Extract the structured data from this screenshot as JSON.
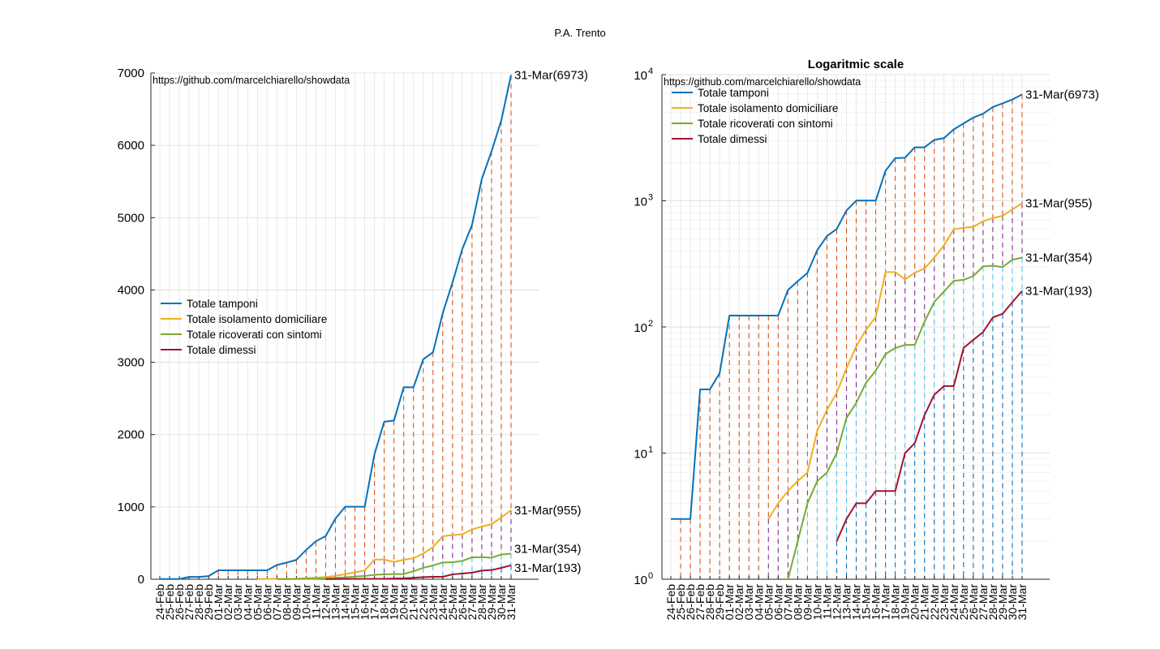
{
  "figure": {
    "title": "P.A. Trento"
  },
  "chart_data": [
    {
      "type": "line",
      "title": "",
      "watermark": "https://github.com/marcelchiarello/showdata",
      "xlabel": "",
      "ylabel": "",
      "ylim": [
        0,
        7000
      ],
      "yticks": [
        "0",
        "1000",
        "2000",
        "3000",
        "4000",
        "5000",
        "6000",
        "7000"
      ],
      "yscale": "linear",
      "grid": true,
      "legend": "left-middle",
      "end_labels": [
        "31-Mar(6973)",
        "31-Mar(955)",
        "31-Mar(354)",
        "31-Mar(193)"
      ]
    },
    {
      "type": "line",
      "title": "Logaritmic scale",
      "watermark": "https://github.com/marcelchiarello/showdata",
      "xlabel": "",
      "ylabel": "",
      "ylim": [
        1,
        10000
      ],
      "yticks": [
        "10",
        "10",
        "10",
        "10",
        "10"
      ],
      "ytick_exponents": [
        "0",
        "1",
        "2",
        "3",
        "4"
      ],
      "yscale": "log",
      "grid": true,
      "legend": "top-left",
      "end_labels": [
        "31-Mar(6973)",
        "31-Mar(955)",
        "31-Mar(354)",
        "31-Mar(193)"
      ]
    }
  ],
  "shared": {
    "categories": [
      "24-Feb",
      "25-Feb",
      "26-Feb",
      "27-Feb",
      "28-Feb",
      "29-Feb",
      "01-Mar",
      "02-Mar",
      "03-Mar",
      "04-Mar",
      "05-Mar",
      "06-Mar",
      "07-Mar",
      "08-Mar",
      "09-Mar",
      "10-Mar",
      "11-Mar",
      "12-Mar",
      "13-Mar",
      "14-Mar",
      "15-Mar",
      "16-Mar",
      "17-Mar",
      "18-Mar",
      "19-Mar",
      "20-Mar",
      "21-Mar",
      "22-Mar",
      "23-Mar",
      "24-Mar",
      "25-Mar",
      "26-Mar",
      "27-Mar",
      "28-Mar",
      "29-Mar",
      "30-Mar",
      "31-Mar"
    ],
    "series": [
      {
        "name": "Totale tamponi",
        "color": "#0072BD",
        "values": [
          3,
          3,
          3,
          32,
          32,
          43,
          123,
          123,
          123,
          123,
          123,
          123,
          196,
          230,
          268,
          405,
          526,
          597,
          838,
          1003,
          1003,
          1003,
          1728,
          2178,
          2194,
          2654,
          2654,
          3041,
          3139,
          3680,
          4103,
          4564,
          4900,
          5534,
          5916,
          6344,
          6973
        ]
      },
      {
        "name": "Totale isolamento domiciliare",
        "color": "#EDB120",
        "values": [
          null,
          null,
          null,
          null,
          null,
          null,
          null,
          null,
          null,
          null,
          3,
          4,
          5,
          6,
          7,
          15,
          22,
          30,
          47,
          70,
          95,
          120,
          272,
          272,
          238,
          269,
          290,
          355,
          444,
          594,
          611,
          621,
          688,
          729,
          760,
          854,
          955
        ]
      },
      {
        "name": "Totale ricoverati con sintomi",
        "color": "#77AC30",
        "values": [
          null,
          null,
          null,
          null,
          null,
          null,
          null,
          null,
          null,
          null,
          null,
          null,
          1,
          2,
          4,
          6,
          7,
          10,
          19,
          25,
          36,
          45,
          61,
          68,
          72,
          72,
          110,
          158,
          191,
          232,
          236,
          253,
          302,
          306,
          298,
          341,
          354
        ]
      },
      {
        "name": "Totale dimessi",
        "color": "#A2142F",
        "values": [
          null,
          null,
          null,
          null,
          null,
          null,
          null,
          null,
          null,
          null,
          null,
          null,
          null,
          null,
          null,
          null,
          null,
          2,
          3,
          4,
          4,
          5,
          5,
          5,
          10,
          12,
          20,
          29,
          34,
          34,
          68,
          79,
          91,
          119,
          127,
          157,
          193
        ]
      }
    ]
  }
}
